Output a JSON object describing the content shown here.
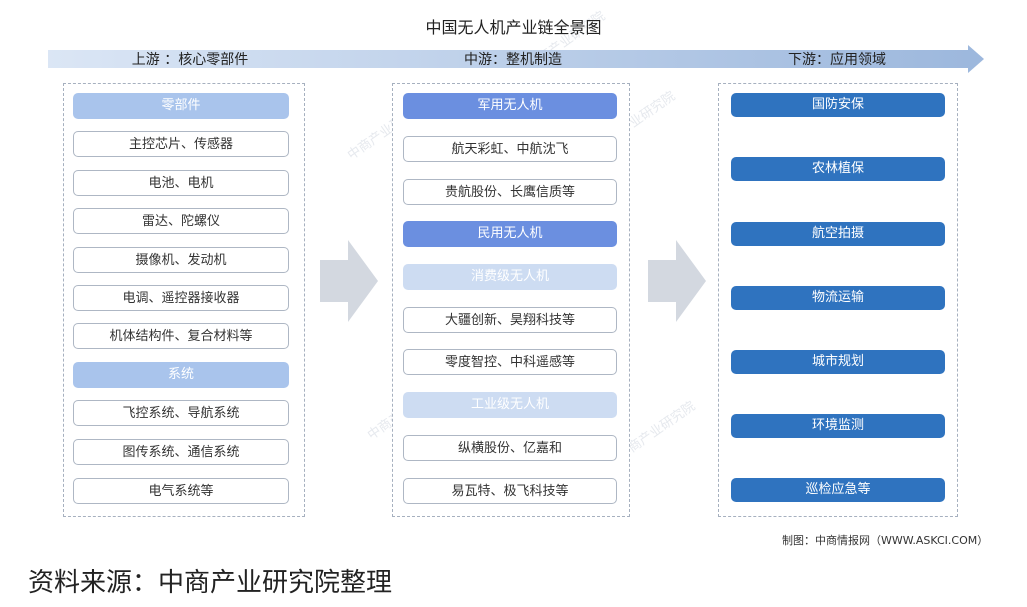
{
  "title": "中国无人机产业链全景图",
  "stages": {
    "upstream": "上游 ：核心零部件",
    "midstream": "中游：整机制造",
    "downstream": "下游：应用领域"
  },
  "upstream": {
    "section1": "零部件",
    "section1_items": [
      "主控芯片、传感器",
      "电池、电机",
      "雷达、陀螺仪",
      "摄像机、发动机",
      "电调、遥控器接收器",
      "机体结构件、复合材料等"
    ],
    "section2": "系统",
    "section2_items": [
      "飞控系统、导航系统",
      "图传系统、通信系统",
      "电气系统等"
    ]
  },
  "midstream": {
    "military": "军用无人机",
    "military_items": [
      "航天彩虹、中航沈飞",
      "贵航股份、长鹰信质等"
    ],
    "civil": "民用无人机",
    "consumer": "消费级无人机",
    "consumer_items": [
      "大疆创新、昊翔科技等",
      "零度智控、中科遥感等"
    ],
    "industrial": "工业级无人机",
    "industrial_items": [
      "纵横股份、亿嘉和",
      "易瓦特、极飞科技等"
    ]
  },
  "downstream": {
    "items": [
      "国防安保",
      "农林植保",
      "航空拍摄",
      "物流运输",
      "城市规划",
      "环境监测",
      "巡检应急等"
    ]
  },
  "credit": "制图：中商情报网（WWW.ASKCI.COM）",
  "source": "资料来源：中商产业研究院整理",
  "watermark": "中商产业研究院",
  "colors": {
    "header_light": "#a9c4ec",
    "header_mid": "#6b8fe0",
    "header_pale": "#cddcf2",
    "application": "#2f73bf",
    "flow_arrow": "#d3d8e0"
  },
  "icons": {
    "flow": "right-arrow-icon"
  }
}
